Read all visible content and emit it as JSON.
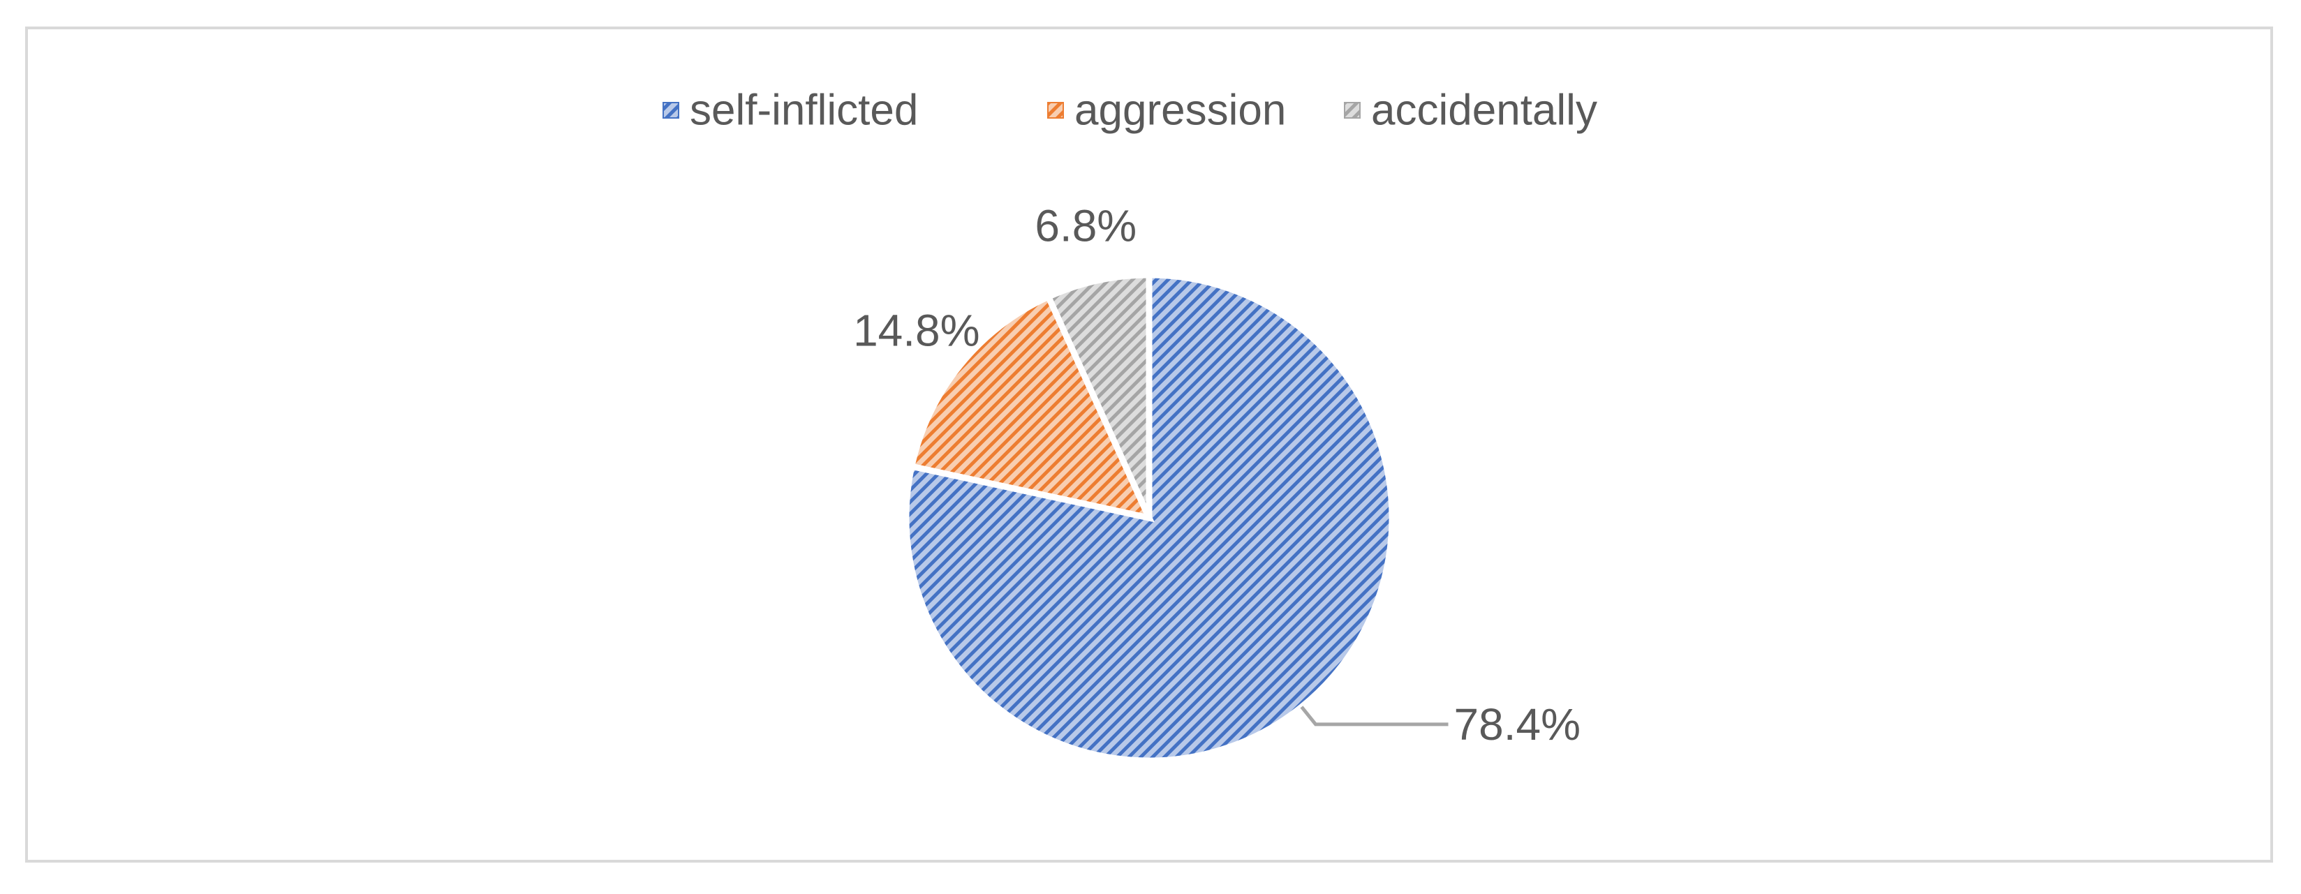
{
  "chart_data": {
    "type": "pie",
    "categories": [
      "self-inflicted",
      "aggression",
      "accidentally"
    ],
    "values": [
      78.4,
      14.8,
      6.8
    ],
    "labels": [
      "78.4%",
      "14.8%",
      "6.8%"
    ],
    "legend_position": "top",
    "start_angle": "12 o'clock, clockwise",
    "colors": [
      "#4472c4",
      "#ed7d31",
      "#a5a5a5"
    ],
    "fill_style": "diagonal-hatch"
  }
}
